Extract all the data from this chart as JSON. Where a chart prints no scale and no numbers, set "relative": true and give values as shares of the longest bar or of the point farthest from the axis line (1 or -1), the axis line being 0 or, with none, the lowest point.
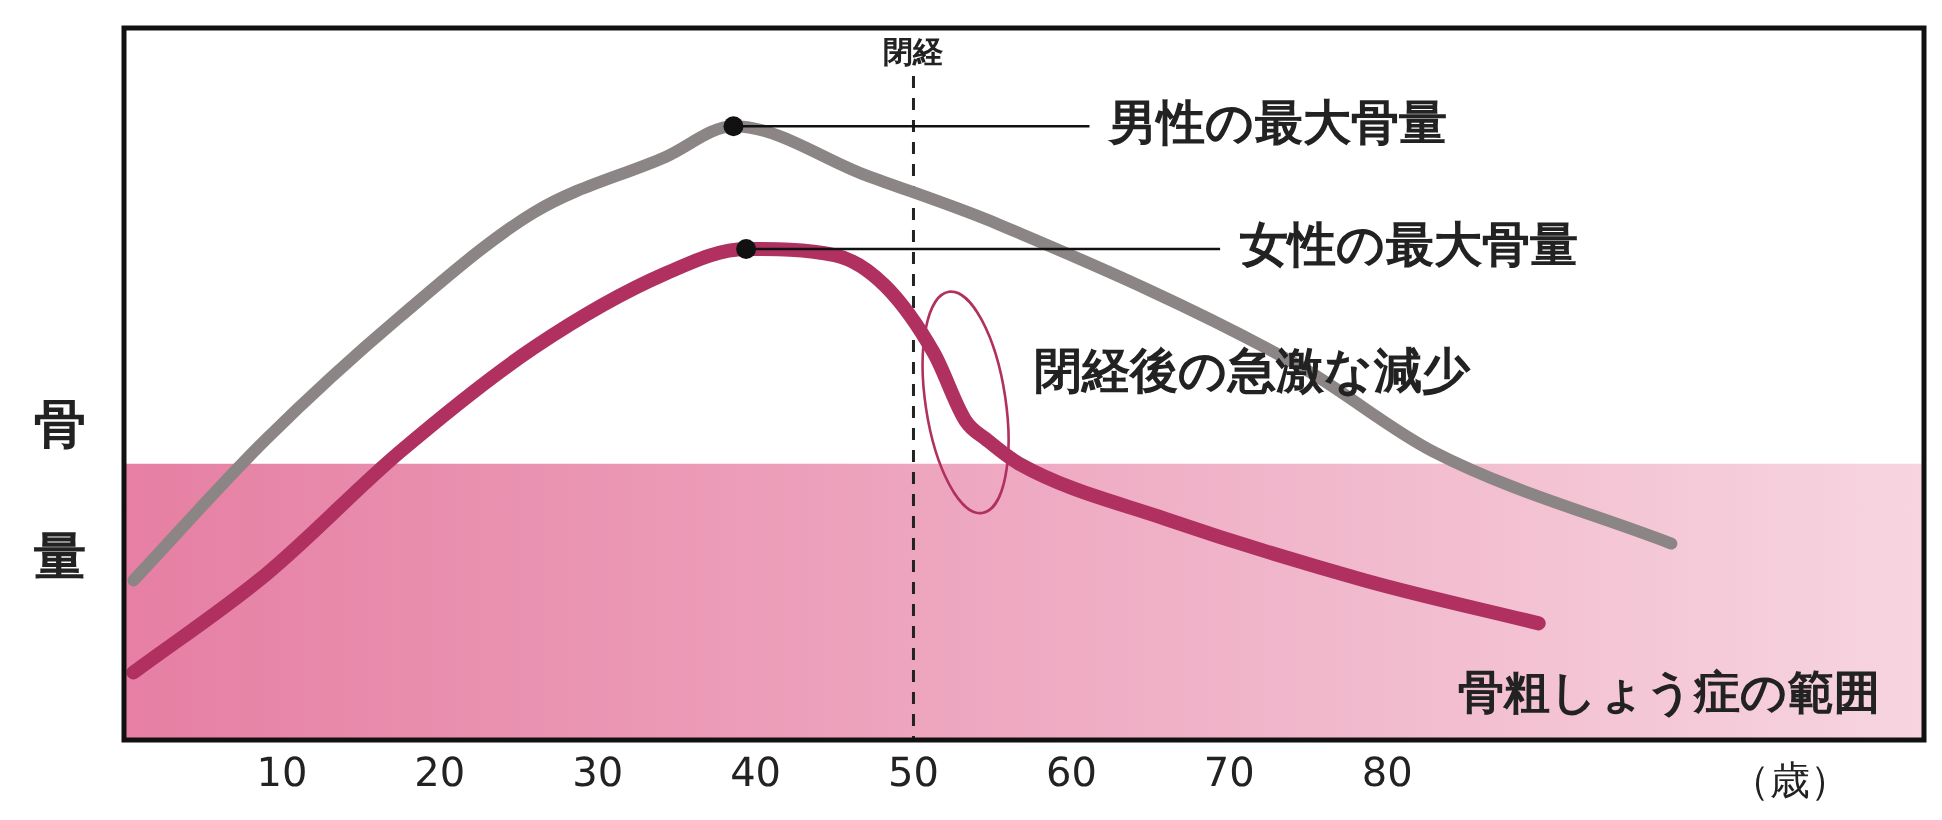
{
  "chart_data": {
    "type": "line",
    "relative": true,
    "ylabel": "骨量",
    "xlabel": "（歳）",
    "xlim": [
      0,
      114
    ],
    "xticks": [
      10,
      20,
      30,
      40,
      50,
      60,
      70,
      80
    ],
    "series": [
      {
        "type": "line",
        "color": "#8c8585",
        "x": [
          0.6,
          9,
          17.5,
          26,
          34.3,
          38.6,
          47,
          55.4,
          74.4,
          82.9,
          98
        ],
        "values": [
          0.26,
          0.49,
          0.69,
          0.86,
          0.95,
          1,
          0.92,
          0.84,
          0.61,
          0.47,
          0.32
        ]
      },
      {
        "type": "line",
        "color": "#b03060",
        "x": [
          0.6,
          9,
          17.5,
          26,
          34.3,
          39.4,
          45,
          48.2,
          51.3,
          53.3,
          54.6,
          56.7,
          66,
          78.6,
          89.6
        ],
        "values": [
          0.11,
          0.27,
          0.47,
          0.64,
          0.76,
          0.8,
          0.79,
          0.74,
          0.63,
          0.52,
          0.49,
          0.45,
          0.36,
          0.26,
          0.19
        ]
      }
    ],
    "bands": [
      {
        "axis": "y",
        "from": 0,
        "to": 0.45,
        "label": "骨粗しょう症の範囲",
        "color": "#e67fa3"
      }
    ],
    "ref_lines": [
      {
        "axis": "x",
        "value": 50,
        "label": "閉経",
        "line_style": "dashed",
        "color": "#222222"
      }
    ],
    "annotations": [
      {
        "text": "男性の最大骨量",
        "x": 38.6,
        "y": 1
      },
      {
        "text": "女性の最大骨量",
        "x": 39.4,
        "y": 0.8
      },
      {
        "text": "閉経後の急激な減少",
        "x": 53.3,
        "y": 0.55
      }
    ],
    "grid": false,
    "legend": false,
    "marker": "none",
    "line_style": "solid"
  }
}
